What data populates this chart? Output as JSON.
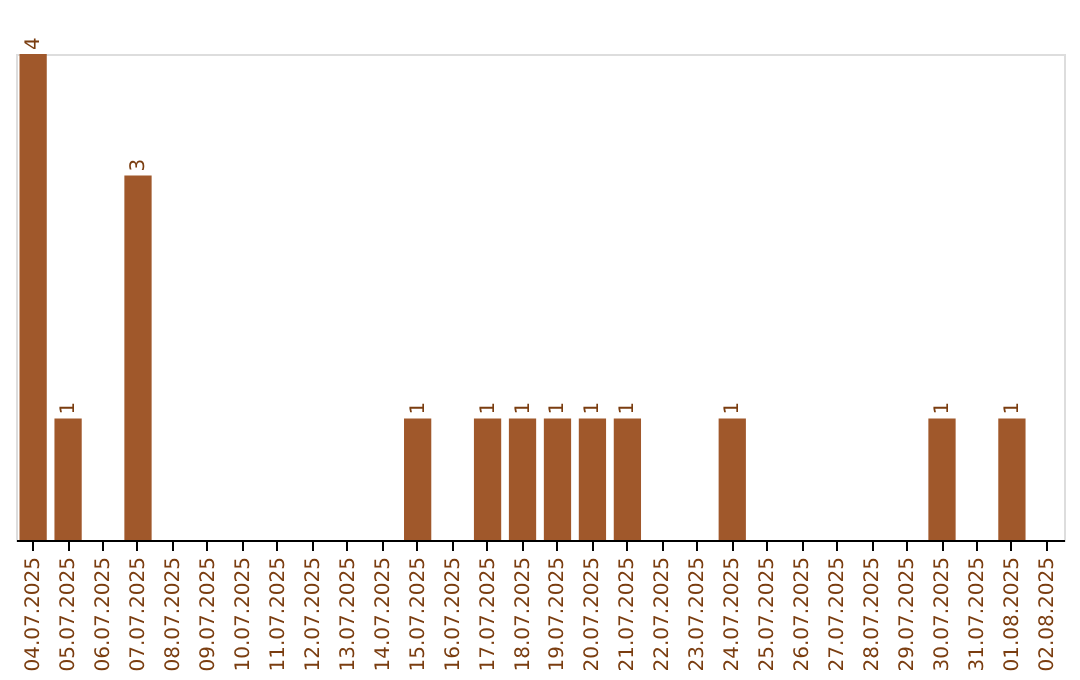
{
  "chart_data": {
    "type": "bar",
    "categories": [
      "04.07.2025",
      "05.07.2025",
      "06.07.2025",
      "07.07.2025",
      "08.07.2025",
      "09.07.2025",
      "10.07.2025",
      "11.07.2025",
      "12.07.2025",
      "13.07.2025",
      "14.07.2025",
      "15.07.2025",
      "16.07.2025",
      "17.07.2025",
      "18.07.2025",
      "19.07.2025",
      "20.07.2025",
      "21.07.2025",
      "22.07.2025",
      "23.07.2025",
      "24.07.2025",
      "25.07.2025",
      "26.07.2025",
      "27.07.2025",
      "28.07.2025",
      "29.07.2025",
      "30.07.2025",
      "31.07.2025",
      "01.08.2025",
      "02.08.2025"
    ],
    "values": [
      4,
      1,
      0,
      3,
      0,
      0,
      0,
      0,
      0,
      0,
      0,
      1,
      0,
      1,
      1,
      1,
      1,
      1,
      0,
      0,
      1,
      0,
      0,
      0,
      0,
      0,
      1,
      0,
      1,
      0
    ],
    "value_labels": [
      "4",
      "1",
      null,
      "3",
      null,
      null,
      null,
      null,
      null,
      null,
      null,
      "1",
      null,
      "1",
      "1",
      "1",
      "1",
      "1",
      null,
      null,
      "1",
      null,
      null,
      null,
      null,
      null,
      "1",
      null,
      "1",
      null
    ],
    "color": "#a0582b",
    "grid": false,
    "tick_labels": "x"
  }
}
